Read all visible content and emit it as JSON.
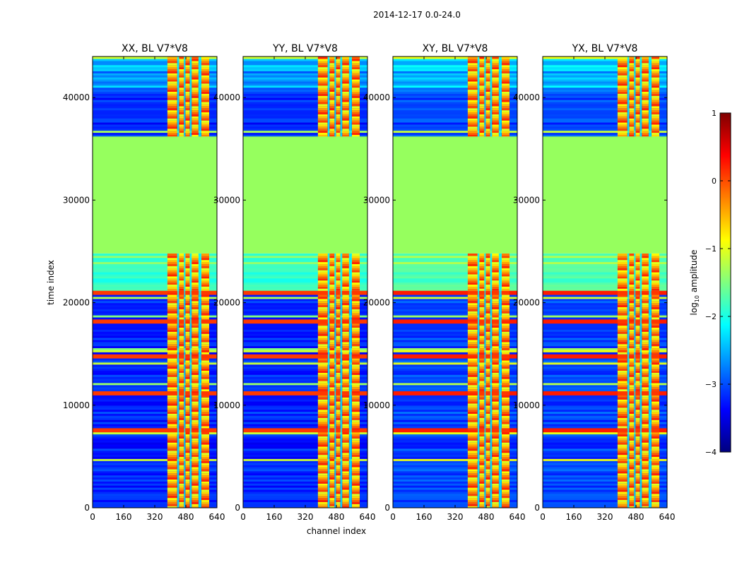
{
  "chart_data": {
    "type": "heatmap",
    "suptitle": "2014-12-17 0.0-24.0",
    "panels": [
      {
        "title": "XX, BL V7*V8"
      },
      {
        "title": "YY, BL V7*V8"
      },
      {
        "title": "XY, BL V7*V8"
      },
      {
        "title": "YX, BL V7*V8"
      }
    ],
    "xlabel": "channel index",
    "ylabel": "time index",
    "xlim": [
      0,
      640
    ],
    "ylim": [
      0,
      44000
    ],
    "xticks": [
      0,
      160,
      320,
      480,
      640
    ],
    "yticks": [
      0,
      10000,
      20000,
      30000,
      40000
    ],
    "colorbar": {
      "label_prefix": "log",
      "label_sub": "10",
      "label_suffix": " amplitude",
      "range": [
        -4,
        1
      ],
      "ticks": [
        -4,
        -3,
        -2,
        -1,
        0,
        1
      ],
      "tick_labels": [
        "−4",
        "−3",
        "−2",
        "−1",
        "0",
        "1"
      ],
      "colormap": "jet"
    },
    "structure": {
      "flagged_time_range": [
        24800,
        36200
      ],
      "flagged_value": -1.2,
      "bright_channel_range": [
        385,
        600
      ],
      "bright_value_approx": -0.4,
      "background_value_approx": -3.2,
      "rfi_time_bands": [
        7600,
        11200,
        14800,
        18200,
        21000
      ]
    },
    "colors": {
      "flag_green": "#96ff5e",
      "background_blue": "#1a35d8",
      "bright_orange": "#ff9a12"
    }
  }
}
